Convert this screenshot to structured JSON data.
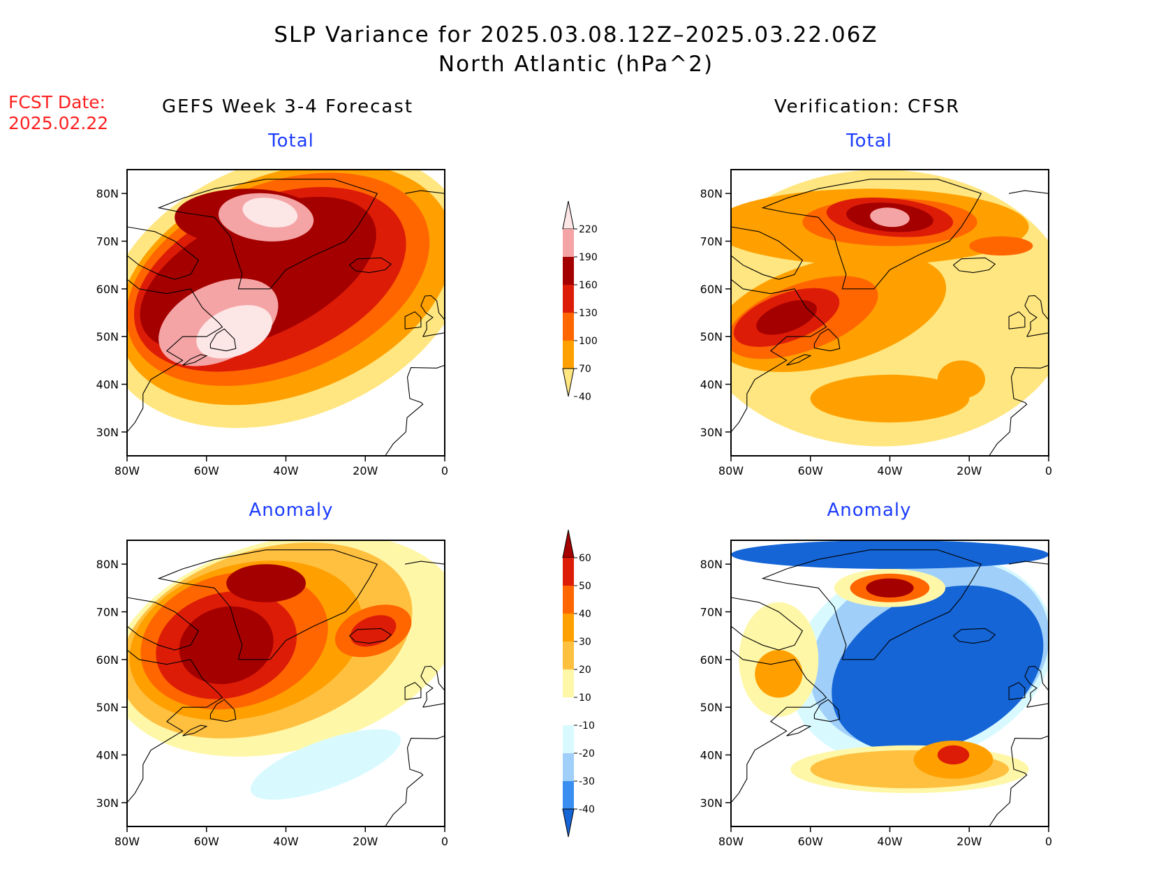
{
  "title_line1": "SLP Variance for 2025.03.08.12Z–2025.03.22.06Z",
  "title_line2": "North Atlantic (hPa^2)",
  "fcst_label": "FCST Date:",
  "fcst_date": "2025.02.22",
  "left_header": "GEFS Week 3-4 Forecast",
  "right_header": "Verification: CFSR",
  "total_label": "Total",
  "anomaly_label": "Anomaly",
  "lat_labels": [
    "80N",
    "70N",
    "60N",
    "50N",
    "40N",
    "30N"
  ],
  "lon_labels": [
    "80W",
    "60W",
    "40W",
    "20W",
    "0"
  ],
  "map_extent": {
    "lon": [
      -80,
      0
    ],
    "lat": [
      25,
      85
    ]
  },
  "total_colorbar": {
    "levels": [
      "220",
      "190",
      "160",
      "130",
      "100",
      "70",
      "40"
    ],
    "colors": [
      "#fde6e6",
      "#f4a4a4",
      "#a50000",
      "#dd1c08",
      "#ff6600",
      "#ffa000",
      "#ffe680"
    ]
  },
  "anomaly_colorbar": {
    "levels": [
      "60",
      "50",
      "40",
      "30",
      "20",
      "10",
      "-10",
      "-20",
      "-30",
      "-40"
    ],
    "colors": [
      "#a50000",
      "#dd1c08",
      "#ff6600",
      "#ffa000",
      "#ffc040",
      "#fff7a8",
      "#ffffff",
      "#d8faff",
      "#a0d0fa",
      "#3a8ef0",
      "#1565d6"
    ]
  },
  "panels": [
    {
      "id": "gefs-total",
      "kind": "total",
      "blobs": [
        {
          "level": 40,
          "lon": -40,
          "lat": 60,
          "rx": 48,
          "ry": 27,
          "rot": 22
        },
        {
          "level": 70,
          "lon": -40,
          "lat": 61,
          "rx": 44,
          "ry": 23,
          "rot": 22
        },
        {
          "level": 100,
          "lon": -42,
          "lat": 62,
          "rx": 40,
          "ry": 20,
          "rot": 22
        },
        {
          "level": 130,
          "lon": -44,
          "lat": 62,
          "rx": 36,
          "ry": 17,
          "rot": 22
        },
        {
          "level": 160,
          "lon": -47,
          "lat": 63,
          "rx": 32,
          "ry": 13,
          "rot": 25
        },
        {
          "level": 160,
          "lon": -50,
          "lat": 75,
          "rx": 18,
          "ry": 6,
          "rot": 0
        },
        {
          "level": 190,
          "lon": -57,
          "lat": 53,
          "rx": 16,
          "ry": 8,
          "rot": 25
        },
        {
          "level": 190,
          "lon": -45,
          "lat": 75,
          "rx": 12,
          "ry": 5,
          "rot": -5
        },
        {
          "level": 220,
          "lon": -53,
          "lat": 51,
          "rx": 10,
          "ry": 5,
          "rot": 22
        },
        {
          "level": 220,
          "lon": -44,
          "lat": 76,
          "rx": 7,
          "ry": 3,
          "rot": -10
        }
      ]
    },
    {
      "id": "cfsr-total",
      "kind": "total",
      "blobs": [
        {
          "level": 40,
          "lon": -42,
          "lat": 56,
          "rx": 48,
          "ry": 29,
          "rot": 0
        },
        {
          "level": 70,
          "lon": -55,
          "lat": 55,
          "rx": 30,
          "ry": 11,
          "rot": 15
        },
        {
          "level": 70,
          "lon": -45,
          "lat": 73,
          "rx": 40,
          "ry": 8,
          "rot": 0
        },
        {
          "level": 70,
          "lon": -40,
          "lat": 37,
          "rx": 20,
          "ry": 5,
          "rot": 0
        },
        {
          "level": 70,
          "lon": -22,
          "lat": 41,
          "rx": 6,
          "ry": 4,
          "rot": 0
        },
        {
          "level": 100,
          "lon": -62,
          "lat": 54,
          "rx": 20,
          "ry": 7,
          "rot": 20
        },
        {
          "level": 100,
          "lon": -40,
          "lat": 74,
          "rx": 22,
          "ry": 5,
          "rot": 0
        },
        {
          "level": 100,
          "lon": -12,
          "lat": 69,
          "rx": 8,
          "ry": 2,
          "rot": 0
        },
        {
          "level": 130,
          "lon": -66,
          "lat": 54,
          "rx": 14,
          "ry": 5,
          "rot": 20
        },
        {
          "level": 130,
          "lon": -40,
          "lat": 75,
          "rx": 16,
          "ry": 4,
          "rot": -5
        },
        {
          "level": 160,
          "lon": -66,
          "lat": 54,
          "rx": 8,
          "ry": 3,
          "rot": 20
        },
        {
          "level": 160,
          "lon": -40,
          "lat": 75,
          "rx": 11,
          "ry": 3,
          "rot": -5
        },
        {
          "level": 190,
          "lon": -40,
          "lat": 75,
          "rx": 5,
          "ry": 2,
          "rot": -5
        }
      ]
    },
    {
      "id": "gefs-anomaly",
      "kind": "anomaly",
      "blobs": [
        {
          "level": 10,
          "lon": -40,
          "lat": 63,
          "rx": 45,
          "ry": 22,
          "rot": 15
        },
        {
          "level": -10,
          "lon": -30,
          "lat": 38,
          "rx": 20,
          "ry": 5,
          "rot": 20
        },
        {
          "level": 20,
          "lon": -45,
          "lat": 64,
          "rx": 38,
          "ry": 19,
          "rot": 18
        },
        {
          "level": 30,
          "lon": -50,
          "lat": 64,
          "rx": 30,
          "ry": 16,
          "rot": 15
        },
        {
          "level": 40,
          "lon": -53,
          "lat": 64,
          "rx": 24,
          "ry": 14,
          "rot": 15
        },
        {
          "level": 40,
          "lon": -18,
          "lat": 66,
          "rx": 10,
          "ry": 5,
          "rot": 20
        },
        {
          "level": 50,
          "lon": -55,
          "lat": 63,
          "rx": 18,
          "ry": 11,
          "rot": 15
        },
        {
          "level": 50,
          "lon": -18,
          "lat": 66,
          "rx": 6,
          "ry": 3,
          "rot": 20
        },
        {
          "level": 60,
          "lon": -55,
          "lat": 63,
          "rx": 12,
          "ry": 8,
          "rot": 15
        },
        {
          "level": 60,
          "lon": -45,
          "lat": 76,
          "rx": 10,
          "ry": 4,
          "rot": 0
        }
      ]
    },
    {
      "id": "cfsr-anomaly",
      "kind": "anomaly",
      "blobs": [
        {
          "level": -10,
          "lon": -32,
          "lat": 60,
          "rx": 34,
          "ry": 21,
          "rot": 20
        },
        {
          "level": -20,
          "lon": -30,
          "lat": 61,
          "rx": 31,
          "ry": 19,
          "rot": 20
        },
        {
          "level": -40,
          "lon": -28,
          "lat": 58,
          "rx": 28,
          "ry": 16,
          "rot": 25
        },
        {
          "level": -40,
          "lon": -40,
          "lat": 82,
          "rx": 40,
          "ry": 3,
          "rot": 0
        },
        {
          "level": 10,
          "lon": -35,
          "lat": 37,
          "rx": 30,
          "ry": 5,
          "rot": 0
        },
        {
          "level": 10,
          "lon": -68,
          "lat": 60,
          "rx": 10,
          "ry": 12,
          "rot": 0
        },
        {
          "level": 10,
          "lon": -40,
          "lat": 75,
          "rx": 14,
          "ry": 4,
          "rot": 0
        },
        {
          "level": 20,
          "lon": -35,
          "lat": 37,
          "rx": 25,
          "ry": 4,
          "rot": 0
        },
        {
          "level": 30,
          "lon": -24,
          "lat": 39,
          "rx": 10,
          "ry": 4,
          "rot": 0
        },
        {
          "level": 30,
          "lon": -68,
          "lat": 57,
          "rx": 6,
          "ry": 5,
          "rot": 0
        },
        {
          "level": 40,
          "lon": -40,
          "lat": 75,
          "rx": 10,
          "ry": 3,
          "rot": 0
        },
        {
          "level": 50,
          "lon": -24,
          "lat": 40,
          "rx": 4,
          "ry": 2,
          "rot": 0
        },
        {
          "level": 60,
          "lon": -40,
          "lat": 75,
          "rx": 6,
          "ry": 2,
          "rot": 0
        }
      ]
    }
  ]
}
